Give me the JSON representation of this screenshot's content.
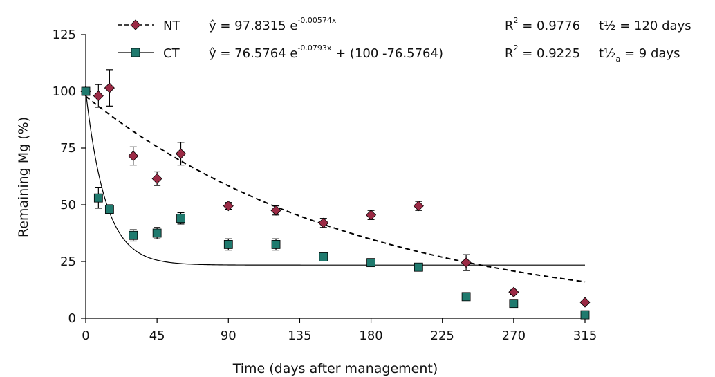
{
  "chart_data": {
    "type": "scatter",
    "title": "",
    "xlabel": "Time (days after management)",
    "ylabel": "Remaining Mg (%)",
    "xlim": [
      0,
      315
    ],
    "ylim": [
      0,
      125
    ],
    "xticks": [
      0,
      45,
      90,
      135,
      180,
      225,
      270,
      315
    ],
    "yticks": [
      0,
      25,
      50,
      75,
      100,
      125
    ],
    "grid": false,
    "legend_position": "top",
    "series": [
      {
        "name": "NT",
        "marker": "diamond",
        "color": "#9b2a45",
        "x": [
          0,
          8,
          15,
          30,
          45,
          60,
          90,
          120,
          150,
          180,
          210,
          240,
          270,
          315
        ],
        "y": [
          100,
          98,
          101.5,
          71.5,
          61.5,
          72.5,
          49.5,
          47.5,
          42,
          45.5,
          49.5,
          24.5,
          11.5,
          7
        ],
        "err": [
          1,
          5,
          8,
          4,
          3,
          5,
          1.5,
          2,
          2,
          2,
          2,
          3.5,
          1,
          0.5
        ],
        "fit": {
          "equation": "ŷ = 97.8315 e",
          "exponent": "-0.00574x",
          "r2": "R² = 0.9776",
          "r2_prefix": "R",
          "r2_sup": "2",
          "r2_value": " = 0.9776",
          "half_life": "t½ = 120 days",
          "line_style": "dashed",
          "a": 97.8315,
          "k": 0.00574,
          "c": 0
        }
      },
      {
        "name": "CT",
        "marker": "square",
        "color": "#1f7a6e",
        "x": [
          0,
          8,
          15,
          30,
          45,
          60,
          90,
          120,
          150,
          180,
          210,
          240,
          270,
          315
        ],
        "y": [
          100,
          53,
          48,
          36.5,
          37.5,
          44,
          32.5,
          32.5,
          27,
          24.5,
          22.5,
          9.5,
          6.5,
          1.5
        ],
        "err": [
          1,
          4.5,
          2,
          2.5,
          2.5,
          2.5,
          2.5,
          2.5,
          0,
          0,
          0,
          0,
          0,
          0
        ],
        "fit": {
          "equation": "ŷ = 76.5764 e",
          "exponent": "-0.0793x",
          "equation_tail": " + (100 -76.5764)",
          "r2_prefix": "R",
          "r2_sup": "2",
          "r2_value": " = 0.9225",
          "half_life_prefix": "t½",
          "half_life_sub": "a",
          "half_life_value": " = 9 days",
          "line_style": "solid",
          "a": 76.5764,
          "k": 0.0793,
          "c": 23.4236
        }
      }
    ]
  }
}
